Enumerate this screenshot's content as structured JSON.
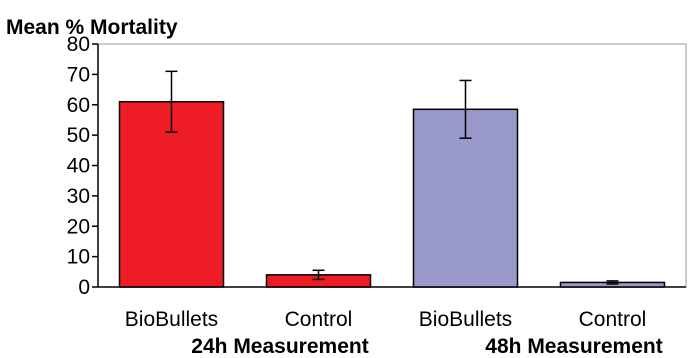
{
  "chart_data": {
    "type": "bar",
    "title": "",
    "xlabel": "",
    "ylabel": "Mean % Mortality",
    "ylim": [
      0,
      80
    ],
    "yticks": [
      0,
      10,
      20,
      30,
      40,
      50,
      60,
      70,
      80
    ],
    "grid": false,
    "categories": [
      "BioBullets",
      "Control",
      "BioBullets",
      "Control"
    ],
    "groups": [
      {
        "label": "24h Measurement",
        "categories": [
          0,
          1
        ]
      },
      {
        "label": "48h Measurement",
        "categories": [
          2,
          3
        ]
      }
    ],
    "values": [
      61,
      4,
      58.5,
      1.5
    ],
    "error": [
      10,
      1.5,
      9.5,
      0.5
    ],
    "colors": [
      "#ee1c24",
      "#ee1c24",
      "#9999cc",
      "#9999cc"
    ]
  }
}
